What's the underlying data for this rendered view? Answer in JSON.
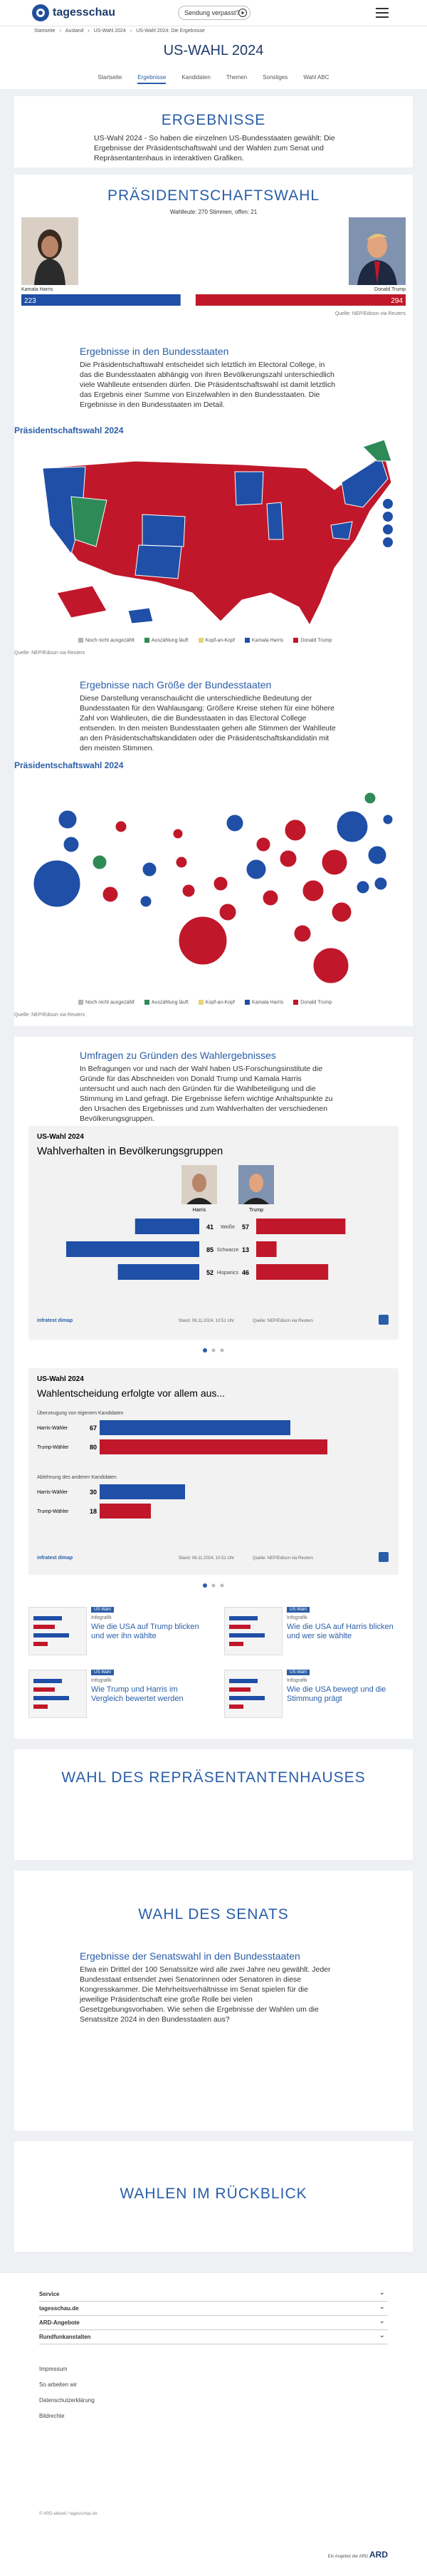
{
  "header": {
    "logo": "tagesschau",
    "missed": "Sendung verpasst?"
  },
  "breadcrumb": [
    "Startseite",
    "Ausland",
    "US-Wahl 2024",
    "US-Wahl 2024: Die Ergebnisse"
  ],
  "page_title": "US-WAHL 2024",
  "nav": [
    "Startseite",
    "Ergebnisse",
    "Kandidaten",
    "Themen",
    "Sonstiges",
    "Wahl ABC"
  ],
  "results": {
    "heading": "ERGEBNISSE",
    "text": "US-Wahl 2024 - So haben die einzelnen US-Bundesstaaten gewählt: Die Ergebnisse der Präsidentschaftswahl und der Wahlen zum Senat und Repräsentantenhaus in interaktiven Grafiken."
  },
  "president": {
    "heading": "PRÄSIDENTSCHAFTSWAHL",
    "majority_label": "Wahlleute: 270 Stimmen, offen:",
    "open": 21,
    "harris_name": "Kamala Harris",
    "trump_name": "Donald Trump",
    "harris": 223,
    "trump": 294,
    "harris_color": "#1f4fa6",
    "trump_color": "#c0182a",
    "source": "Quelle: NEP/Edison via Reuters"
  },
  "states": {
    "heading": "Ergebnisse in den Bundesstaaten",
    "text": "Die Präsidentschaftswahl entscheidet sich letztlich im Electoral College, in das die Bundesstaaten abhängig von ihren Bevölkerungszahl unterschiedlich viele Wahlleute entsenden dürfen. Die Präsidentschaftswahl ist damit letztlich das Ergebnis einer Summe von Einzelwahlen in den Bundesstaaten. Die Ergebnisse in den Bundesstaaten im Detail.",
    "chart_title": "Präsidentschaftswahl 2024",
    "source": "Quelle: NEP/Edison via Reuters"
  },
  "size": {
    "heading": "Ergebnisse nach Größe der Bundesstaaten",
    "text": "Diese Darstellung veranschaulicht die unterschiedliche Bedeutung der Bundesstaaten für den Wahlausgang: Größere Kreise stehen für eine höhere Zahl von Wahlleuten, die die Bundesstaaten in das Electoral College entsenden. In den meisten Bundesstaaten gehen alle Stimmen der Wahlleute an den Präsidentschaftskandidaten oder die Präsidentschaftskandidatin mit den meisten Stimmen.",
    "chart_title": "Präsidentschaftswahl 2024",
    "source": "Quelle: NEP/Edison via Reuters"
  },
  "legend": [
    {
      "label": "Noch nicht ausgezählt",
      "color": "#b5b5b5"
    },
    {
      "label": "Auszählung läuft",
      "color": "#2e8b57"
    },
    {
      "label": "Kopf-an-Kopf",
      "color": "#e8d27a"
    },
    {
      "label": "Kamala Harris",
      "color": "#1f4fa6"
    },
    {
      "label": "Donald Trump",
      "color": "#c0182a"
    }
  ],
  "polls": {
    "heading": "Umfragen zu Gründen des Wahlergebnisses",
    "text": "In Befragungen vor und nach der Wahl haben US-Forschungsinstitute die Gründe für das Abschneiden von Donald Trump und Kamala Harris untersucht und auch nach den Gründen für die Wahlbeteiligung und die Stimmung im Land gefragt. Die Ergebnisse liefern wichtige Anhaltspunkte zu den Ursachen des Ergebnisses und zum Wahlverhalten der verschiedenen Bevölkerungsgruppen."
  },
  "card1": {
    "kicker": "US-Wahl 2024",
    "title": "Wahlverhalten in Bevölkerungsgruppen",
    "candidates": [
      "Harris",
      "Trump"
    ],
    "rows": [
      {
        "label": "Weiße",
        "harris": 41,
        "trump": 57
      },
      {
        "label": "Schwarze",
        "harris": 85,
        "trump": 13
      },
      {
        "label": "Hispanics",
        "harris": 52,
        "trump": 46
      }
    ],
    "brand": "infratest dimap",
    "stand": "Stand: 06.11.2024, 10:51 Uhr",
    "source": "Quelle: NEP/Edison via Reuters"
  },
  "card2": {
    "kicker": "US-Wahl 2024",
    "title": "Wahlentscheidung erfolgte vor allem aus...",
    "groups": [
      {
        "label": "Überzeugung von eigenem Kandidaten",
        "rows": [
          {
            "label": "Harris-Wähler",
            "value": 67
          },
          {
            "label": "Trump-Wähler",
            "value": 80
          }
        ]
      },
      {
        "label": "Ablehnung des anderen Kandidaten",
        "rows": [
          {
            "label": "Harris-Wähler",
            "value": 30
          },
          {
            "label": "Trump-Wähler",
            "value": 18
          }
        ]
      }
    ],
    "brand": "infratest dimap",
    "stand": "Stand: 06.11.2024, 10:51 Uhr",
    "source": "Quelle: NEP/Edison via Reuters"
  },
  "teasers": [
    {
      "tag": "US-Wahl",
      "kicker": "Infografik",
      "title": "Wie die USA auf Trump blicken und wer ihn wählte"
    },
    {
      "tag": "US-Wahl",
      "kicker": "Infografik",
      "title": "Wie die USA auf Harris blicken und wer sie wählte"
    },
    {
      "tag": "US-Wahl",
      "kicker": "Infografik",
      "title": "Wie Trump und Harris im Vergleich bewertet werden"
    },
    {
      "tag": "US-Wahl",
      "kicker": "Infografik",
      "title": "Wie die USA bewegt und die Stimmung prägt"
    }
  ],
  "house": {
    "heading": "WAHL DES REPRÄSENTANTENHAUSES"
  },
  "senate": {
    "heading": "WAHL DES SENATS",
    "sub_heading": "Ergebnisse der Senatswahl in den Bundesstaaten",
    "text": "Etwa ein Drittel der 100 Senatssitze wird alle zwei Jahre neu gewählt. Jeder Bundesstaat entsendet zwei Senatorinnen oder Senatoren in diese Kongresskammer. Die Mehrheitsverhältnisse im Senat spielen für die jeweilige Präsidentschaft eine große Rolle bei vielen Gesetzgebungsvorhaben. Wie sehen die Ergebnisse der Wahlen um die Senatssitze 2024 in den Bundesstaaten aus?"
  },
  "history": {
    "heading": "WAHLEN IM RÜCKBLICK"
  },
  "footer": {
    "sections": [
      "Service",
      "tagesschau.de",
      "ARD-Angebote",
      "Rundfunkanstalten"
    ],
    "links": [
      "Impressum",
      "So arbeiten wir",
      "Datenschutzerklärung",
      "Bildrechte"
    ],
    "copyright": "© ARD-aktuell / tagesschau.de",
    "ard": "Ein Angebot der ARD"
  }
}
